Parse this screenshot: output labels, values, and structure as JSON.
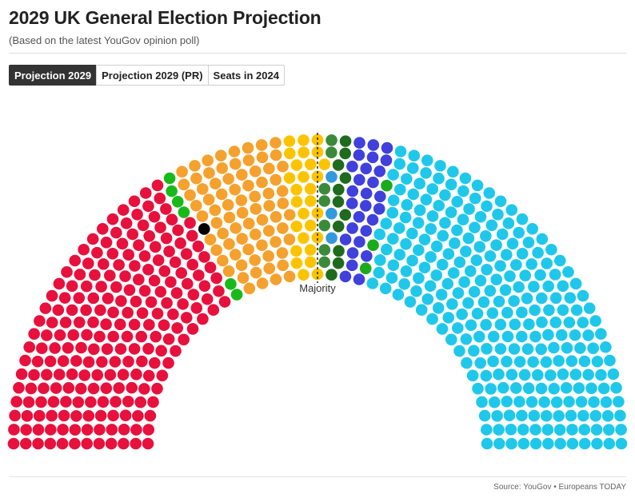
{
  "header": {
    "title": "2029 UK General Election Projection",
    "subtitle": "(Based on the latest YouGov opinion poll)"
  },
  "tabs": [
    {
      "label": "Projection 2029",
      "active": true
    },
    {
      "label": "Projection 2029 (PR)",
      "active": false
    },
    {
      "label": "Seats in 2024",
      "active": false
    }
  ],
  "footer": {
    "source": "Source: YouGov • Europeans TODAY"
  },
  "chart_data": {
    "type": "parliament",
    "total_seats": 650,
    "majority_label": "Majority",
    "majority_seats": 326,
    "series": [
      {
        "color": "#e8103c",
        "seats": 218
      },
      {
        "color": "#1ab91a",
        "seats": 6
      },
      {
        "color": "#000000",
        "seats": 1
      },
      {
        "color": "#f5a12d",
        "seats": 76
      },
      {
        "color": "#fcc400",
        "seats": 28
      },
      {
        "color": "#3a8a3a",
        "seats": 1
      },
      {
        "color": "#3a8a3a",
        "seats": 6
      },
      {
        "color": "#3399dd",
        "seats": 3
      },
      {
        "color": "#1e6b1e",
        "seats": 11
      },
      {
        "color": "#4040dd",
        "seats": 28
      },
      {
        "color": "#1aaa1a",
        "seats": 3
      },
      {
        "color": "#1fc8ea",
        "seats": 269
      }
    ]
  }
}
